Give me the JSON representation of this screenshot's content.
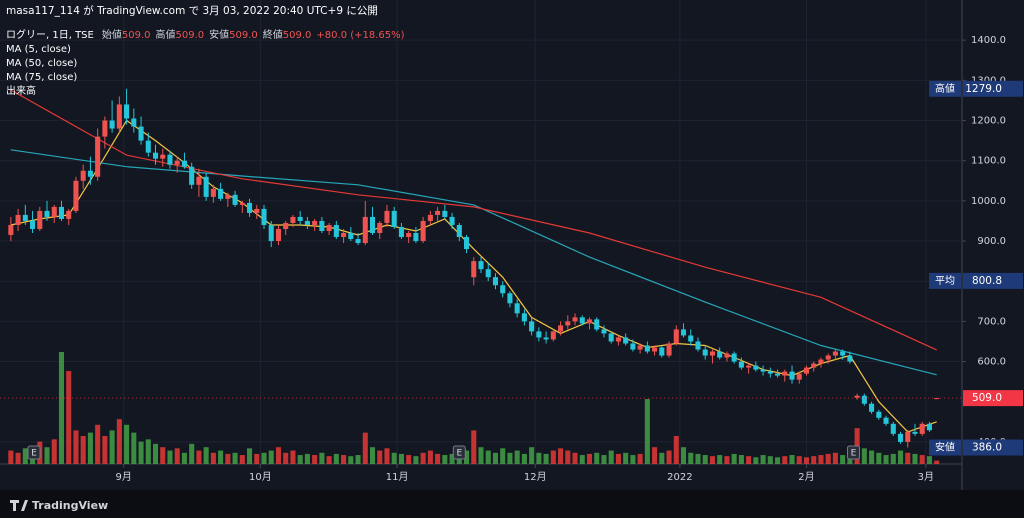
{
  "header": "masa117_114 が TradingView.com で 3月 03, 2022 20:40 UTC+9 に公開",
  "footer": "TradingView",
  "chart_data": {
    "type": "candlestick",
    "symbol": "ログリー, 1日, TSE",
    "ohlc_legend": [
      {
        "name": "始値",
        "label": "509.0"
      },
      {
        "name": "高値",
        "label": "509.0"
      },
      {
        "name": "安値",
        "label": "509.0"
      },
      {
        "name": "終値",
        "label": "509.0"
      }
    ],
    "change": "+80.0 (+18.65%)",
    "up_color": "#ef5350",
    "down_color": "#26c6da",
    "volume_name": "出来高",
    "volume_up_color": "#e53935",
    "volume_down_color": "#43a047",
    "ylim": [
      345,
      1500
    ],
    "yticks": [
      {
        "value": 1400,
        "label": "1400.0"
      },
      {
        "value": 1300,
        "label": "1300.0"
      },
      {
        "value": 1200,
        "label": "1200.0"
      },
      {
        "value": 1100,
        "label": "1100.0"
      },
      {
        "value": 1000,
        "label": "1000.0"
      },
      {
        "value": 900,
        "label": "900.0"
      },
      {
        "value": 800,
        "label": "800.0"
      },
      {
        "value": 700,
        "label": "700.0"
      },
      {
        "value": 600,
        "label": "600.0"
      },
      {
        "value": 400,
        "label": "400.0"
      }
    ],
    "xlim": [
      -1.5,
      131.5
    ],
    "xticks": [
      {
        "value": 15.6,
        "label": "9月"
      },
      {
        "value": 34.5,
        "label": "10月"
      },
      {
        "value": 53.4,
        "label": "11月"
      },
      {
        "value": 72.5,
        "label": "12月"
      },
      {
        "value": 92.5,
        "label": "2022"
      },
      {
        "value": 110,
        "label": "2月"
      },
      {
        "value": 126.5,
        "label": "3月"
      }
    ],
    "grid": true,
    "ohlc": [
      [
        915,
        960,
        900,
        940
      ],
      [
        940,
        980,
        925,
        965
      ],
      [
        965,
        990,
        940,
        950
      ],
      [
        950,
        975,
        920,
        930
      ],
      [
        930,
        985,
        925,
        975
      ],
      [
        975,
        1000,
        950,
        960
      ],
      [
        960,
        990,
        945,
        985
      ],
      [
        985,
        1000,
        950,
        955
      ],
      [
        955,
        980,
        940,
        975
      ],
      [
        975,
        1060,
        970,
        1050
      ],
      [
        1050,
        1090,
        1030,
        1075
      ],
      [
        1075,
        1110,
        1040,
        1060
      ],
      [
        1060,
        1180,
        1050,
        1160
      ],
      [
        1160,
        1210,
        1130,
        1200
      ],
      [
        1200,
        1250,
        1170,
        1180
      ],
      [
        1180,
        1260,
        1170,
        1240
      ],
      [
        1240,
        1279,
        1190,
        1205
      ],
      [
        1205,
        1230,
        1170,
        1185
      ],
      [
        1185,
        1210,
        1140,
        1150
      ],
      [
        1150,
        1170,
        1110,
        1120
      ],
      [
        1120,
        1140,
        1090,
        1105
      ],
      [
        1105,
        1130,
        1085,
        1115
      ],
      [
        1115,
        1125,
        1080,
        1090
      ],
      [
        1090,
        1110,
        1070,
        1100
      ],
      [
        1100,
        1120,
        1080,
        1085
      ],
      [
        1085,
        1095,
        1030,
        1040
      ],
      [
        1040,
        1080,
        1010,
        1060
      ],
      [
        1060,
        1070,
        1000,
        1010
      ],
      [
        1010,
        1040,
        995,
        1030
      ],
      [
        1030,
        1045,
        1000,
        1005
      ],
      [
        1005,
        1020,
        985,
        1015
      ],
      [
        1015,
        1025,
        985,
        990
      ],
      [
        990,
        1000,
        970,
        995
      ],
      [
        995,
        1005,
        960,
        970
      ],
      [
        970,
        990,
        955,
        980
      ],
      [
        980,
        990,
        930,
        940
      ],
      [
        940,
        950,
        885,
        900
      ],
      [
        900,
        940,
        890,
        930
      ],
      [
        930,
        950,
        915,
        945
      ],
      [
        945,
        965,
        935,
        960
      ],
      [
        960,
        975,
        940,
        950
      ],
      [
        950,
        960,
        930,
        940
      ],
      [
        940,
        955,
        925,
        950
      ],
      [
        950,
        960,
        920,
        925
      ],
      [
        925,
        945,
        915,
        940
      ],
      [
        940,
        950,
        905,
        910
      ],
      [
        910,
        930,
        895,
        920
      ],
      [
        920,
        935,
        900,
        905
      ],
      [
        905,
        920,
        890,
        895
      ],
      [
        895,
        1000,
        890,
        960
      ],
      [
        960,
        985,
        915,
        920
      ],
      [
        920,
        950,
        905,
        945
      ],
      [
        945,
        990,
        935,
        975
      ],
      [
        975,
        985,
        930,
        935
      ],
      [
        935,
        945,
        905,
        910
      ],
      [
        910,
        925,
        895,
        920
      ],
      [
        920,
        935,
        895,
        900
      ],
      [
        900,
        960,
        895,
        950
      ],
      [
        950,
        975,
        940,
        965
      ],
      [
        965,
        985,
        950,
        975
      ],
      [
        975,
        990,
        955,
        960
      ],
      [
        960,
        970,
        930,
        940
      ],
      [
        940,
        945,
        900,
        910
      ],
      [
        910,
        915,
        870,
        880
      ],
      [
        810,
        860,
        790,
        850
      ],
      [
        850,
        860,
        820,
        830
      ],
      [
        830,
        845,
        800,
        810
      ],
      [
        810,
        820,
        780,
        790
      ],
      [
        790,
        800,
        760,
        770
      ],
      [
        770,
        775,
        735,
        745
      ],
      [
        745,
        755,
        710,
        720
      ],
      [
        720,
        730,
        690,
        700
      ],
      [
        700,
        710,
        665,
        675
      ],
      [
        675,
        685,
        650,
        660
      ],
      [
        660,
        675,
        645,
        655
      ],
      [
        655,
        680,
        650,
        675
      ],
      [
        675,
        700,
        665,
        690
      ],
      [
        690,
        715,
        680,
        700
      ],
      [
        700,
        720,
        690,
        710
      ],
      [
        710,
        715,
        690,
        695
      ],
      [
        695,
        710,
        680,
        705
      ],
      [
        705,
        710,
        675,
        680
      ],
      [
        680,
        690,
        660,
        670
      ],
      [
        670,
        675,
        645,
        650
      ],
      [
        650,
        665,
        640,
        660
      ],
      [
        660,
        670,
        640,
        645
      ],
      [
        645,
        655,
        625,
        630
      ],
      [
        630,
        645,
        620,
        640
      ],
      [
        640,
        650,
        620,
        625
      ],
      [
        625,
        640,
        615,
        635
      ],
      [
        635,
        640,
        610,
        615
      ],
      [
        615,
        650,
        610,
        645
      ],
      [
        645,
        690,
        640,
        680
      ],
      [
        680,
        695,
        660,
        665
      ],
      [
        665,
        680,
        640,
        650
      ],
      [
        650,
        660,
        625,
        630
      ],
      [
        630,
        640,
        605,
        615
      ],
      [
        615,
        630,
        595,
        625
      ],
      [
        625,
        635,
        605,
        610
      ],
      [
        610,
        625,
        600,
        620
      ],
      [
        620,
        625,
        595,
        600
      ],
      [
        600,
        610,
        580,
        585
      ],
      [
        585,
        595,
        570,
        590
      ],
      [
        590,
        600,
        575,
        580
      ],
      [
        580,
        590,
        565,
        575
      ],
      [
        575,
        585,
        560,
        570
      ],
      [
        570,
        580,
        560,
        565
      ],
      [
        565,
        580,
        550,
        575
      ],
      [
        575,
        590,
        545,
        555
      ],
      [
        555,
        575,
        545,
        570
      ],
      [
        570,
        590,
        565,
        585
      ],
      [
        585,
        600,
        575,
        595
      ],
      [
        595,
        610,
        585,
        605
      ],
      [
        605,
        620,
        595,
        615
      ],
      [
        615,
        630,
        605,
        625
      ],
      [
        625,
        630,
        605,
        615
      ],
      [
        615,
        625,
        595,
        600
      ],
      [
        510,
        520,
        505,
        515
      ],
      [
        515,
        520,
        490,
        495
      ],
      [
        495,
        500,
        470,
        475
      ],
      [
        475,
        480,
        455,
        460
      ],
      [
        460,
        465,
        440,
        445
      ],
      [
        445,
        450,
        415,
        420
      ],
      [
        420,
        425,
        395,
        400
      ],
      [
        400,
        430,
        386,
        425
      ],
      [
        425,
        445,
        415,
        420
      ],
      [
        420,
        450,
        415,
        445
      ],
      [
        445,
        450,
        425,
        429
      ],
      [
        509,
        509,
        509,
        509
      ]
    ],
    "volume": [
      12,
      10,
      14,
      9,
      20,
      15,
      22,
      100,
      83,
      30,
      25,
      28,
      35,
      25,
      30,
      40,
      35,
      28,
      20,
      22,
      18,
      15,
      12,
      14,
      10,
      18,
      12,
      15,
      10,
      12,
      9,
      10,
      8,
      14,
      9,
      10,
      12,
      15,
      10,
      12,
      8,
      9,
      8,
      10,
      7,
      9,
      8,
      7,
      8,
      28,
      15,
      12,
      14,
      10,
      9,
      8,
      7,
      10,
      12,
      9,
      8,
      9,
      10,
      12,
      30,
      15,
      12,
      10,
      14,
      10,
      12,
      9,
      15,
      10,
      9,
      12,
      14,
      12,
      10,
      8,
      9,
      10,
      8,
      12,
      9,
      10,
      8,
      9,
      58,
      15,
      10,
      12,
      25,
      15,
      10,
      9,
      8,
      7,
      8,
      7,
      9,
      8,
      7,
      6,
      8,
      7,
      6,
      7,
      8,
      7,
      6,
      7,
      8,
      9,
      10,
      8,
      9,
      32,
      14,
      12,
      10,
      8,
      9,
      12,
      10,
      9,
      8,
      7,
      3
    ],
    "series": [
      {
        "name": "MA (5, close)",
        "color": "#f5c542",
        "x": [
          0,
          4,
          8,
          12,
          16,
          20,
          24,
          28,
          32,
          36,
          40,
          44,
          48,
          52,
          56,
          60,
          64,
          68,
          72,
          76,
          80,
          84,
          88,
          92,
          96,
          100,
          104,
          108,
          112,
          116,
          120,
          124,
          128
        ],
        "values": [
          940,
          955,
          965,
          1080,
          1200,
          1150,
          1095,
          1035,
          995,
          940,
          940,
          935,
          915,
          940,
          925,
          955,
          880,
          810,
          710,
          670,
          700,
          665,
          635,
          645,
          640,
          610,
          580,
          565,
          595,
          615,
          500,
          425,
          450
        ]
      },
      {
        "name": "MA (50, close)",
        "color": "#26a6b8",
        "x": [
          0,
          16,
          32,
          48,
          64,
          80,
          96,
          112,
          128
        ],
        "values": [
          1127,
          1085,
          1062,
          1040,
          990,
          860,
          748,
          640,
          567
        ]
      },
      {
        "name": "MA (75, close)",
        "color": "#e53935",
        "x": [
          0,
          16,
          32,
          48,
          64,
          80,
          96,
          112,
          128
        ],
        "values": [
          1276,
          1114,
          1055,
          1015,
          985,
          920,
          835,
          760,
          629
        ]
      }
    ],
    "earnings": [
      {
        "value": 3.2,
        "label": "E"
      },
      {
        "value": 62,
        "label": "E"
      },
      {
        "value": 116.5,
        "label": "E"
      }
    ],
    "price_labels": [
      {
        "name": "高値",
        "value": 1279,
        "label": "1279.0",
        "color": "#1e3a78"
      },
      {
        "name": "平均",
        "value": 800.8,
        "label": "800.8",
        "color": "#1e3a78"
      },
      {
        "value": 509,
        "label": "509.0",
        "color": "#f23645"
      },
      {
        "name": "安値",
        "value": 386,
        "label": "386.0",
        "color": "#1e3a78"
      }
    ]
  }
}
